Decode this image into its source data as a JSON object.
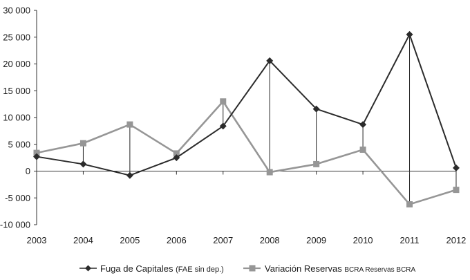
{
  "chart_data": {
    "type": "line",
    "x": [
      "2003",
      "2004",
      "2005",
      "2006",
      "2007",
      "2008",
      "2009",
      "2010",
      "2011",
      "2012"
    ],
    "ylim": [
      -10000,
      30000
    ],
    "yticks": [
      -10000,
      -5000,
      0,
      5000,
      10000,
      15000,
      20000,
      25000,
      30000
    ],
    "ytick_labels": [
      "-10 000",
      "-5 000",
      "0",
      "5 000",
      "10 000",
      "15 000",
      "20 000",
      "25 000",
      "30 000"
    ],
    "grid": false,
    "drop_lines": true,
    "legend_position": "bottom",
    "series": [
      {
        "name": "Fuga de Capitales",
        "name_note": "(FAE sin dep.)",
        "marker": "diamond",
        "color": "#2b2b2b",
        "values": [
          2700,
          1300,
          -800,
          2500,
          8400,
          20600,
          11600,
          8700,
          25500,
          600
        ]
      },
      {
        "name": "Variación Reservas",
        "name_note": "BCRA Reservas BCRA",
        "marker": "square",
        "color": "#969696",
        "values": [
          3400,
          5200,
          8700,
          3300,
          13000,
          -200,
          1300,
          4000,
          -6200,
          -3500
        ]
      }
    ]
  }
}
